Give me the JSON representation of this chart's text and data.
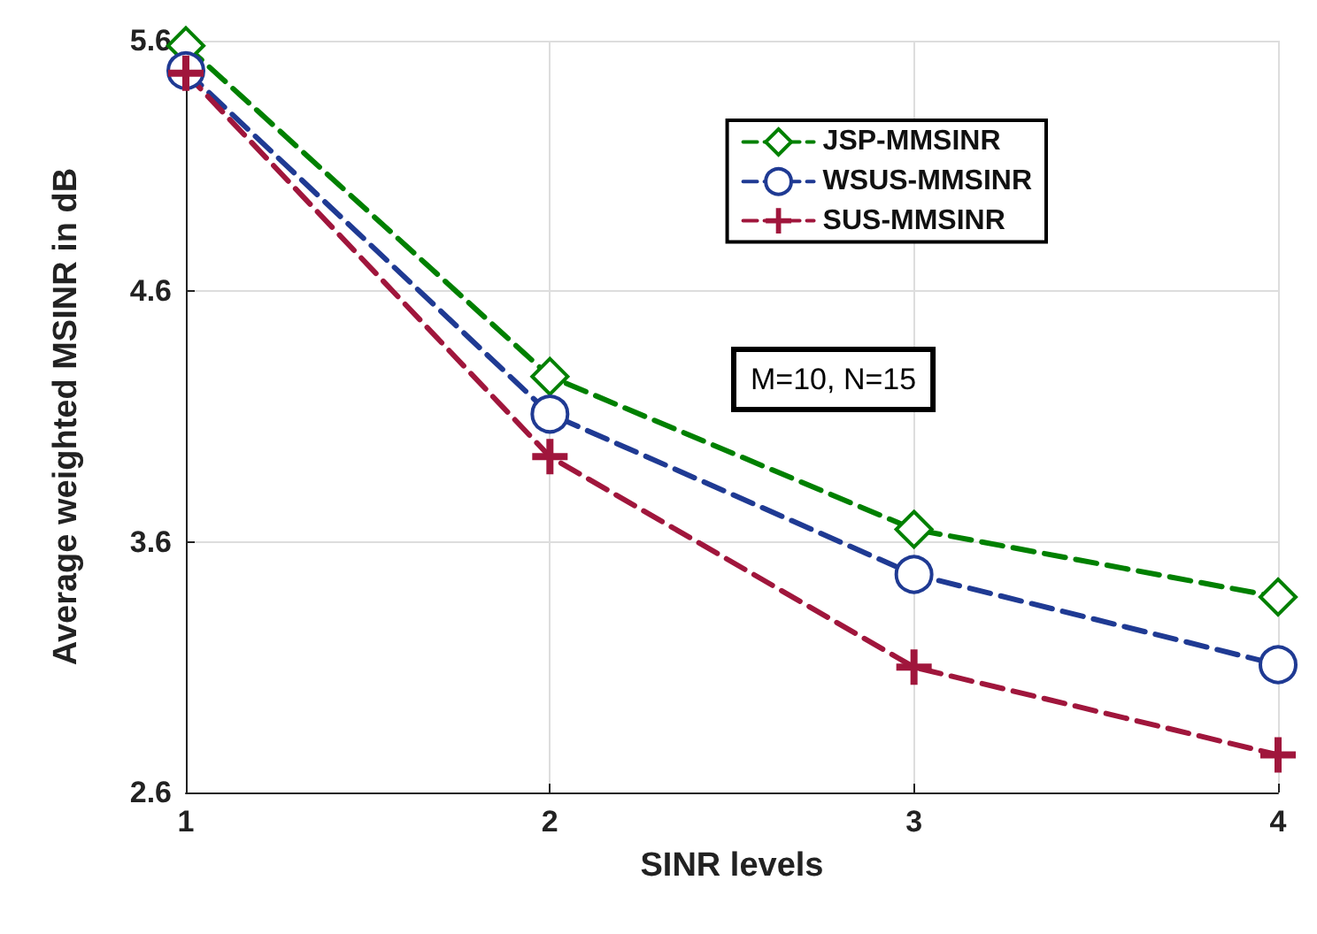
{
  "chart_data": {
    "type": "line",
    "xlabel": "SINR levels",
    "ylabel": "Average weighted MSINR in dB",
    "x": [
      1,
      2,
      3,
      4
    ],
    "series": [
      {
        "name": "JSP-MMSINR",
        "color": "#008000",
        "marker": "diamond",
        "values": [
          5.58,
          4.26,
          3.65,
          3.38
        ]
      },
      {
        "name": "WSUS-MMSINR",
        "color": "#1f3a93",
        "marker": "circle",
        "values": [
          5.48,
          4.11,
          3.47,
          3.11
        ]
      },
      {
        "name": "SUS-MMSINR",
        "color": "#a0163c",
        "marker": "cross",
        "values": [
          5.47,
          3.94,
          3.1,
          2.75
        ]
      }
    ],
    "xlim": [
      1,
      4
    ],
    "xticks": [
      1,
      2,
      3,
      4
    ],
    "ylim": [
      2.6,
      5.6
    ],
    "yticks": [
      2.6,
      3.6,
      4.6,
      5.6
    ],
    "grid": true,
    "legend": "top right",
    "line_style": "dashed",
    "annotations": [
      "M=10, N=15"
    ]
  }
}
